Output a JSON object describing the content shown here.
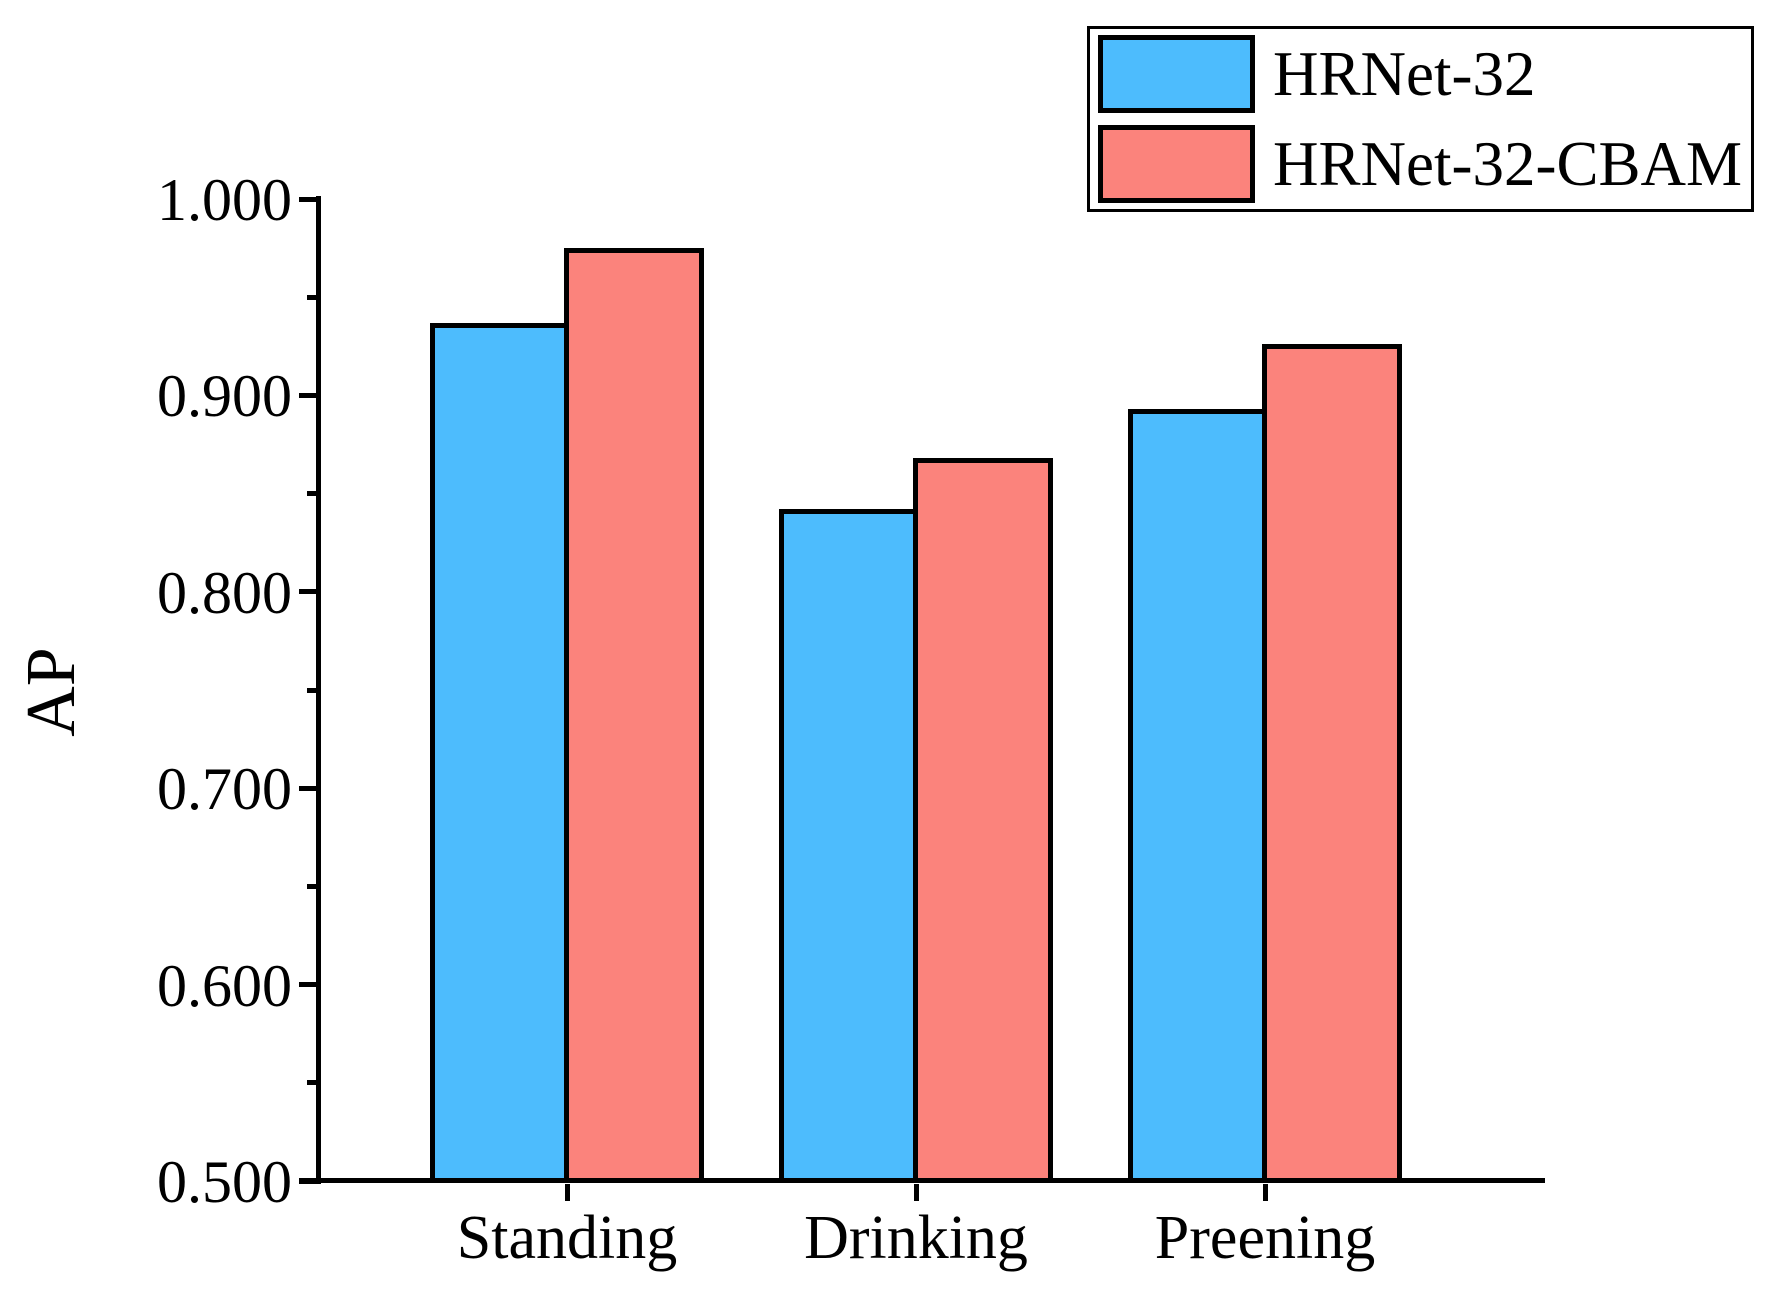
{
  "figure": {
    "background": "#ffffff",
    "axis_color": "#000000"
  },
  "chart_data": {
    "type": "bar",
    "title": "",
    "xlabel": "",
    "ylabel": "AP",
    "categories": [
      "Standing",
      "Drinking",
      "Preening"
    ],
    "series": [
      {
        "name": "HRNet-32",
        "color": "#4DBCFD",
        "values": [
          0.938,
          0.843,
          0.894
        ]
      },
      {
        "name": "HRNet-32-CBAM",
        "color": "#FB837C",
        "values": [
          0.976,
          0.869,
          0.927
        ]
      }
    ],
    "ylim": [
      0.5,
      1.0
    ],
    "y_major_tick_labels": [
      "0.500",
      "0.600",
      "0.700",
      "0.800",
      "0.900",
      "1.000"
    ],
    "y_minor_ticks": [
      0.55,
      0.65,
      0.75,
      0.85,
      0.95
    ],
    "bar_edge_color": "#000000",
    "grid": "off",
    "legend_position": "top-right"
  }
}
